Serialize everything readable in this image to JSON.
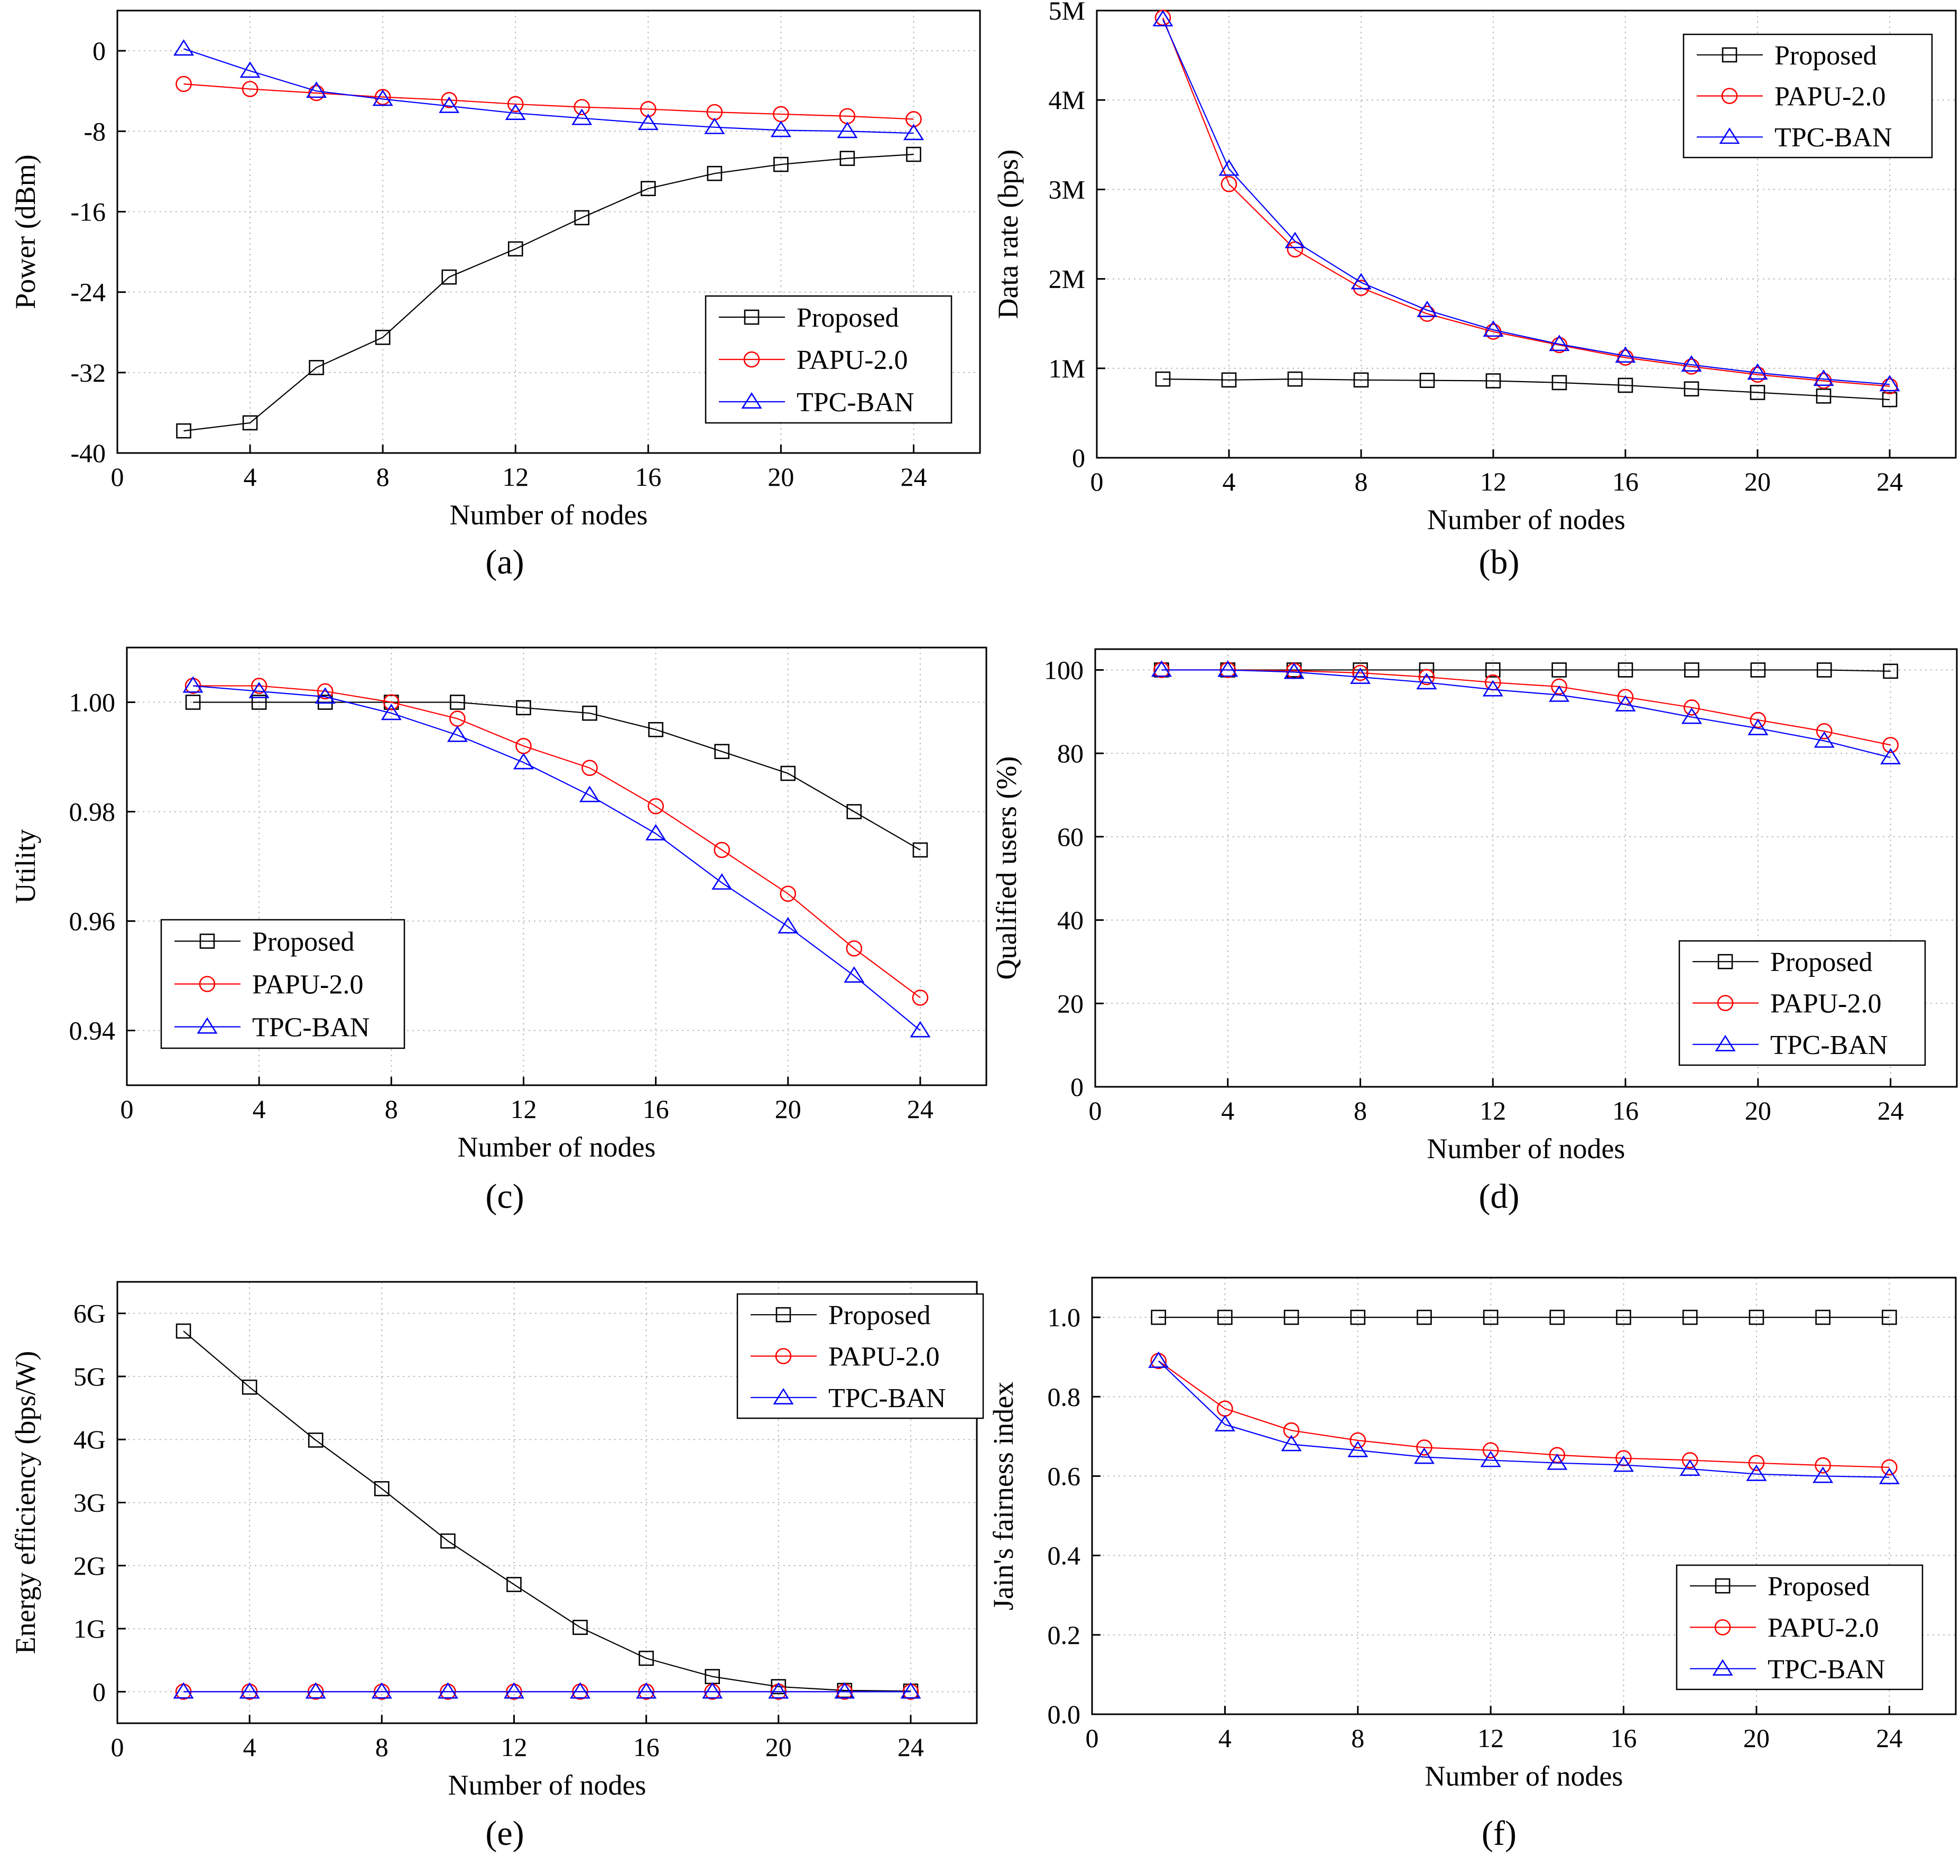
{
  "figure": {
    "panels": [
      "(a)",
      "(b)",
      "(c)",
      "(d)",
      "(e)",
      "(f)"
    ]
  },
  "colors": {
    "proposed": "#000000",
    "papu": "#ff0000",
    "tpc": "#0000ff",
    "grid": "#bbbbbb"
  },
  "chart_data": [
    {
      "id": "a",
      "type": "line",
      "panel_label": "(a)",
      "xlabel": "Number of nodes",
      "ylabel": "Power (dBm)",
      "xlim": [
        0,
        26
      ],
      "ylim": [
        -40,
        4
      ],
      "xticks": [
        0,
        4,
        8,
        12,
        16,
        20,
        24
      ],
      "xtick_labels": [
        "0",
        "4",
        "8",
        "12",
        "16",
        "20",
        "24"
      ],
      "yticks": [
        0,
        -8,
        -16,
        -24,
        -32,
        -40
      ],
      "ytick_labels": [
        "0",
        "-8",
        "-16",
        "-24",
        "-32",
        "-40"
      ],
      "grid": true,
      "legend_position": "bottom-right",
      "x": [
        2,
        4,
        6,
        8,
        10,
        12,
        14,
        16,
        18,
        20,
        22,
        24
      ],
      "series": [
        {
          "name": "Proposed",
          "marker": "square",
          "values": [
            -37.8,
            -37.0,
            -31.5,
            -28.5,
            -22.5,
            -19.7,
            -16.6,
            -13.7,
            -12.2,
            -11.3,
            -10.7,
            -10.3
          ]
        },
        {
          "name": "PAPU-2.0",
          "marker": "circle",
          "values": [
            -3.3,
            -3.8,
            -4.2,
            -4.6,
            -4.9,
            -5.3,
            -5.6,
            -5.8,
            -6.1,
            -6.3,
            -6.5,
            -6.8
          ]
        },
        {
          "name": "TPC-BAN",
          "marker": "triangle",
          "values": [
            0.2,
            -2.0,
            -4.0,
            -4.8,
            -5.5,
            -6.2,
            -6.7,
            -7.2,
            -7.6,
            -7.9,
            -8.0,
            -8.2
          ]
        }
      ]
    },
    {
      "id": "b",
      "type": "line",
      "panel_label": "(b)",
      "xlabel": "Number of nodes",
      "ylabel": "Data rate (bps)",
      "xlim": [
        0,
        26
      ],
      "ylim": [
        0,
        5000000
      ],
      "xticks": [
        0,
        4,
        8,
        12,
        16,
        20,
        24
      ],
      "xtick_labels": [
        "0",
        "4",
        "8",
        "12",
        "16",
        "20",
        "24"
      ],
      "yticks": [
        0,
        1000000,
        2000000,
        3000000,
        4000000,
        5000000
      ],
      "ytick_labels": [
        "0",
        "1M",
        "2M",
        "3M",
        "4M",
        "5M"
      ],
      "grid": true,
      "legend_position": "top-right",
      "x": [
        2,
        4,
        6,
        8,
        10,
        12,
        14,
        16,
        18,
        20,
        22,
        24
      ],
      "series": [
        {
          "name": "Proposed",
          "marker": "square",
          "values": [
            880000,
            870000,
            880000,
            870000,
            865000,
            860000,
            840000,
            810000,
            770000,
            730000,
            690000,
            650000
          ]
        },
        {
          "name": "PAPU-2.0",
          "marker": "circle",
          "values": [
            4920000,
            3060000,
            2330000,
            1900000,
            1610000,
            1410000,
            1260000,
            1120000,
            1020000,
            930000,
            860000,
            800000
          ]
        },
        {
          "name": "TPC-BAN",
          "marker": "triangle",
          "values": [
            4900000,
            3230000,
            2420000,
            1960000,
            1650000,
            1430000,
            1270000,
            1140000,
            1040000,
            950000,
            880000,
            820000
          ]
        }
      ]
    },
    {
      "id": "c",
      "type": "line",
      "panel_label": "(c)",
      "xlabel": "Number of nodes",
      "ylabel": "Utility",
      "xlim": [
        0,
        26
      ],
      "ylim": [
        0.93,
        1.01
      ],
      "xticks": [
        0,
        4,
        8,
        12,
        16,
        20,
        24
      ],
      "xtick_labels": [
        "0",
        "4",
        "8",
        "12",
        "16",
        "20",
        "24"
      ],
      "yticks": [
        0.94,
        0.96,
        0.98,
        1.0
      ],
      "ytick_labels": [
        "0.94",
        "0.96",
        "0.98",
        "1.00"
      ],
      "grid": true,
      "legend_position": "bottom-left",
      "x": [
        2,
        4,
        6,
        8,
        10,
        12,
        14,
        16,
        18,
        20,
        22,
        24
      ],
      "series": [
        {
          "name": "Proposed",
          "marker": "square",
          "values": [
            1.0,
            1.0,
            1.0,
            1.0,
            1.0,
            0.999,
            0.998,
            0.995,
            0.991,
            0.987,
            0.98,
            0.973
          ]
        },
        {
          "name": "PAPU-2.0",
          "marker": "circle",
          "values": [
            1.003,
            1.003,
            1.002,
            1.0,
            0.997,
            0.992,
            0.988,
            0.981,
            0.973,
            0.965,
            0.955,
            0.946
          ]
        },
        {
          "name": "TPC-BAN",
          "marker": "triangle",
          "values": [
            1.003,
            1.002,
            1.001,
            0.998,
            0.994,
            0.989,
            0.983,
            0.976,
            0.967,
            0.959,
            0.95,
            0.94
          ]
        }
      ]
    },
    {
      "id": "d",
      "type": "line",
      "panel_label": "(d)",
      "xlabel": "Number of nodes",
      "ylabel": "Qualified users (%)",
      "xlim": [
        0,
        26
      ],
      "ylim": [
        0,
        105
      ],
      "xticks": [
        0,
        4,
        8,
        12,
        16,
        20,
        24
      ],
      "xtick_labels": [
        "0",
        "4",
        "8",
        "12",
        "16",
        "20",
        "24"
      ],
      "yticks": [
        0,
        20,
        40,
        60,
        80,
        100
      ],
      "ytick_labels": [
        "0",
        "20",
        "40",
        "60",
        "80",
        "100"
      ],
      "grid": true,
      "legend_position": "bottom-right",
      "x": [
        2,
        4,
        6,
        8,
        10,
        12,
        14,
        16,
        18,
        20,
        22,
        24
      ],
      "series": [
        {
          "name": "Proposed",
          "marker": "square",
          "values": [
            100,
            100,
            100,
            100,
            100,
            100,
            100,
            100,
            100,
            100,
            100,
            99.7
          ]
        },
        {
          "name": "PAPU-2.0",
          "marker": "circle",
          "values": [
            100,
            100,
            99.8,
            99.3,
            98.3,
            97,
            96,
            93.5,
            91,
            88,
            85.3,
            82
          ]
        },
        {
          "name": "TPC-BAN",
          "marker": "triangle",
          "values": [
            100,
            100,
            99.5,
            98.3,
            97,
            95.3,
            94,
            91.7,
            88.7,
            86,
            83,
            79
          ]
        }
      ]
    },
    {
      "id": "e",
      "type": "line",
      "panel_label": "(e)",
      "xlabel": "Number of nodes",
      "ylabel": "Energy efficiency (bps/W)",
      "xlim": [
        0,
        26
      ],
      "ylim": [
        -500000000,
        6500000000
      ],
      "xticks": [
        0,
        4,
        8,
        12,
        16,
        20,
        24
      ],
      "xtick_labels": [
        "0",
        "4",
        "8",
        "12",
        "16",
        "20",
        "24"
      ],
      "yticks": [
        0,
        1000000000,
        2000000000,
        3000000000,
        4000000000,
        5000000000,
        6000000000
      ],
      "ytick_labels": [
        "0",
        "1G",
        "2G",
        "3G",
        "4G",
        "5G",
        "6G"
      ],
      "grid": true,
      "legend_position": "top-right",
      "x": [
        2,
        4,
        6,
        8,
        10,
        12,
        14,
        16,
        18,
        20,
        22,
        24
      ],
      "series": [
        {
          "name": "Proposed",
          "marker": "square",
          "values": [
            5720000000,
            4830000000,
            3990000000,
            3220000000,
            2390000000,
            1700000000,
            1020000000,
            530000000,
            240000000,
            80000000,
            20000000,
            10000000
          ]
        },
        {
          "name": "PAPU-2.0",
          "marker": "circle",
          "values": [
            0,
            0,
            0,
            0,
            0,
            0,
            0,
            0,
            0,
            0,
            0,
            0
          ]
        },
        {
          "name": "TPC-BAN",
          "marker": "triangle",
          "values": [
            0,
            0,
            0,
            0,
            0,
            0,
            0,
            0,
            0,
            0,
            0,
            0
          ]
        }
      ]
    },
    {
      "id": "f",
      "type": "line",
      "panel_label": "(f)",
      "xlabel": "Number of nodes",
      "ylabel": "Jain's fairness index",
      "xlim": [
        0,
        26
      ],
      "ylim": [
        0,
        1.1
      ],
      "xticks": [
        0,
        4,
        8,
        12,
        16,
        20,
        24
      ],
      "xtick_labels": [
        "0",
        "4",
        "8",
        "12",
        "16",
        "20",
        "24"
      ],
      "yticks": [
        0,
        0.2,
        0.4,
        0.6,
        0.8,
        1.0
      ],
      "ytick_labels": [
        "0.0",
        "0.2",
        "0.4",
        "0.6",
        "0.8",
        "1.0"
      ],
      "grid": true,
      "legend_position": "bottom-right",
      "x": [
        2,
        4,
        6,
        8,
        10,
        12,
        14,
        16,
        18,
        20,
        22,
        24
      ],
      "series": [
        {
          "name": "Proposed",
          "marker": "square",
          "values": [
            1.0,
            1.0,
            1.0,
            1.0,
            1.0,
            1.0,
            1.0,
            1.0,
            1.0,
            1.0,
            1.0,
            1.0
          ]
        },
        {
          "name": "PAPU-2.0",
          "marker": "circle",
          "values": [
            0.89,
            0.77,
            0.715,
            0.69,
            0.672,
            0.665,
            0.653,
            0.645,
            0.64,
            0.633,
            0.627,
            0.622
          ]
        },
        {
          "name": "TPC-BAN",
          "marker": "triangle",
          "values": [
            0.89,
            0.73,
            0.68,
            0.665,
            0.648,
            0.64,
            0.633,
            0.628,
            0.618,
            0.605,
            0.6,
            0.597
          ]
        }
      ]
    }
  ]
}
